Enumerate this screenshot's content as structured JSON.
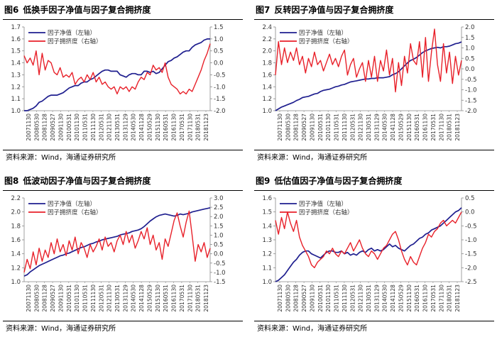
{
  "chart_data": [
    {
      "type": "line",
      "num": "图6",
      "title": "低换手因子净值与因子复合拥挤度",
      "source": "资料来源：Wind，海通证券研究所",
      "left_axis": {
        "ylim": [
          1.0,
          1.7
        ],
        "ticks": [
          "1.0",
          "1.1",
          "1.2",
          "1.3",
          "1.4",
          "1.5",
          "1.6",
          "1.7"
        ]
      },
      "right_axis": {
        "ylim": [
          -2.0,
          1.5
        ],
        "ticks": [
          "-2.0",
          "-1.5",
          "-1.0",
          "-0.5",
          "0.0",
          "0.5",
          "1.0",
          "1.5"
        ]
      },
      "x_tick_labels": [
        "20071130",
        "20080530",
        "20081128",
        "20090527",
        "20091130",
        "20100531",
        "20101130",
        "20110531",
        "20111130",
        "20120531",
        "20121130",
        "20130531",
        "20131129",
        "20140530",
        "20141128",
        "20150529",
        "20151130",
        "20160531",
        "20161130",
        "20170531",
        "20171130",
        "20180531",
        "20181123"
      ],
      "colors": {
        "nav": "#1f1f8f",
        "crowd": "#e8212a"
      },
      "series": [
        {
          "name": "因子净值（左轴）",
          "axis": "left",
          "color": "#1f1f8f",
          "values": [
            1.0,
            1.0,
            1.01,
            1.02,
            1.04,
            1.07,
            1.08,
            1.1,
            1.12,
            1.13,
            1.13,
            1.13,
            1.14,
            1.15,
            1.17,
            1.19,
            1.2,
            1.21,
            1.21,
            1.23,
            1.24,
            1.24,
            1.26,
            1.27,
            1.29,
            1.31,
            1.33,
            1.34,
            1.34,
            1.33,
            1.33,
            1.33,
            1.3,
            1.29,
            1.28,
            1.3,
            1.31,
            1.31,
            1.3,
            1.3,
            1.33,
            1.33,
            1.32,
            1.33,
            1.31,
            1.32,
            1.35,
            1.38,
            1.41,
            1.42,
            1.44,
            1.45,
            1.47,
            1.49,
            1.5,
            1.5,
            1.53,
            1.55,
            1.56,
            1.57,
            1.59,
            1.6,
            1.6
          ]
        },
        {
          "name": "因子拥挤度（右轴）",
          "axis": "right",
          "color": "#e8212a",
          "values": [
            0.3,
            0.0,
            0.2,
            -0.1,
            0.5,
            -0.5,
            0.4,
            -0.3,
            0.1,
            0.0,
            -0.4,
            -0.5,
            -0.2,
            -0.6,
            -0.5,
            -0.6,
            -0.4,
            -0.9,
            -0.7,
            -0.6,
            -0.8,
            -0.5,
            -0.7,
            -0.4,
            -0.8,
            -0.6,
            -0.9,
            -0.8,
            -1.0,
            -1.1,
            -1.0,
            -1.3,
            -1.0,
            -1.1,
            -1.0,
            -1.2,
            -1.0,
            -1.1,
            -0.8,
            -0.6,
            -0.7,
            -0.4,
            -0.5,
            -0.1,
            -0.3,
            -0.2,
            -0.4,
            0.0,
            -0.6,
            -0.9,
            -1.0,
            -1.1,
            -1.3,
            -1.2,
            -1.3,
            -1.1,
            -1.2,
            -0.9,
            -0.6,
            -0.3,
            0.1,
            0.4,
            0.8
          ]
        }
      ],
      "legend_position": "top-left"
    },
    {
      "type": "line",
      "num": "图7",
      "title": "反转因子净值与因子复合拥挤度",
      "source": "资料来源：Wind，海通证券研究所",
      "left_axis": {
        "ylim": [
          1.0,
          2.4
        ],
        "ticks": [
          "1.0",
          "1.2",
          "1.4",
          "1.6",
          "1.8",
          "2.0",
          "2.2",
          "2.4"
        ]
      },
      "right_axis": {
        "ylim": [
          -2.0,
          2.0
        ],
        "ticks": [
          "-2.0",
          "-1.5",
          "-1.0",
          "-0.5",
          "0.0",
          "0.5",
          "1.0",
          "1.5",
          "2.0"
        ]
      },
      "x_tick_labels": [
        "20071130",
        "20080530",
        "20081128",
        "20090527",
        "20091130",
        "20100531",
        "20101130",
        "20110531",
        "20111130",
        "20120531",
        "20121130",
        "20130531",
        "20131129",
        "20140530",
        "20141128",
        "20150529",
        "20151130",
        "20160531",
        "20161130",
        "20170531",
        "20171130",
        "20180531",
        "20181123"
      ],
      "colors": {
        "nav": "#1f1f8f",
        "crowd": "#e8212a"
      },
      "series": [
        {
          "name": "因子净值（左轴）",
          "axis": "left",
          "color": "#1f1f8f",
          "values": [
            1.0,
            1.03,
            1.06,
            1.08,
            1.1,
            1.12,
            1.14,
            1.17,
            1.19,
            1.22,
            1.23,
            1.24,
            1.26,
            1.28,
            1.29,
            1.32,
            1.34,
            1.35,
            1.36,
            1.38,
            1.4,
            1.41,
            1.43,
            1.44,
            1.46,
            1.48,
            1.49,
            1.5,
            1.51,
            1.52,
            1.53,
            1.53,
            1.54,
            1.54,
            1.55,
            1.55,
            1.55,
            1.56,
            1.57,
            1.6,
            1.62,
            1.65,
            1.7,
            1.75,
            1.8,
            1.84,
            1.86,
            1.89,
            1.93,
            1.97,
            2.0,
            2.02,
            2.04,
            2.05,
            2.06,
            2.05,
            2.07,
            2.07,
            2.08,
            2.1,
            2.12,
            2.13,
            2.15
          ]
        },
        {
          "name": "因子拥挤度（右轴）",
          "axis": "right",
          "color": "#e8212a",
          "values": [
            -0.3,
            1.3,
            0.2,
            1.0,
            0.3,
            0.8,
            0.4,
            1.0,
            0.2,
            0.6,
            -0.2,
            0.5,
            0.1,
            0.8,
            0.2,
            0.4,
            -0.1,
            0.3,
            0.7,
            0.2,
            0.5,
            0.1,
            0.6,
            0.9,
            -0.3,
            0.2,
            0.5,
            -0.4,
            0.0,
            0.3,
            -0.6,
            0.4,
            -0.4,
            0.6,
            -0.6,
            0.4,
            -0.1,
            0.9,
            -0.3,
            0.5,
            -1.1,
            0.3,
            -0.8,
            0.6,
            -0.2,
            1.2,
            0.4,
            0.2,
            1.3,
            -0.4,
            1.5,
            -0.6,
            0.8,
            1.9,
            0.2,
            -0.6,
            1.2,
            -0.2,
            0.8,
            -0.7,
            0.6,
            -0.3,
            0.4
          ]
        }
      ],
      "legend_position": "top-left"
    },
    {
      "type": "line",
      "num": "图8",
      "title": "低波动因子净值与因子复合拥挤度",
      "source": "资料来源：Wind，海通证券研究所",
      "left_axis": {
        "ylim": [
          1.0,
          2.2
        ],
        "ticks": [
          "1.0",
          "1.2",
          "1.4",
          "1.6",
          "1.8",
          "2.0",
          "2.2"
        ]
      },
      "right_axis": {
        "ylim": [
          -1.5,
          3.0
        ],
        "ticks": [
          "-1.5",
          "-1.0",
          "-0.5",
          "0.0",
          "0.5",
          "1.0",
          "1.5",
          "2.0",
          "2.5",
          "3.0"
        ]
      },
      "x_tick_labels": [
        "20071130",
        "20080530",
        "20081128",
        "20090527",
        "20091130",
        "20100531",
        "20101130",
        "20110531",
        "20111130",
        "20120531",
        "20121130",
        "20130531",
        "20131129",
        "20140530",
        "20141128",
        "20150529",
        "20151130",
        "20160531",
        "20161130",
        "20170531",
        "20171130",
        "20180531",
        "20181123"
      ],
      "colors": {
        "nav": "#1f1f8f",
        "crowd": "#e8212a"
      },
      "series": [
        {
          "name": "因子净值（左轴）",
          "axis": "left",
          "color": "#1f1f8f",
          "values": [
            1.08,
            1.1,
            1.14,
            1.17,
            1.2,
            1.23,
            1.25,
            1.27,
            1.29,
            1.31,
            1.33,
            1.35,
            1.37,
            1.38,
            1.4,
            1.41,
            1.43,
            1.45,
            1.47,
            1.49,
            1.5,
            1.52,
            1.54,
            1.55,
            1.57,
            1.58,
            1.6,
            1.61,
            1.62,
            1.63,
            1.64,
            1.65,
            1.67,
            1.68,
            1.69,
            1.7,
            1.72,
            1.73,
            1.74,
            1.76,
            1.79,
            1.83,
            1.87,
            1.9,
            1.93,
            1.95,
            1.96,
            1.97,
            1.96,
            1.95,
            1.94,
            1.95,
            1.97,
            1.96,
            1.97,
            1.98,
            2.0,
            2.01,
            2.02,
            2.03,
            2.04,
            2.05,
            2.06
          ]
        },
        {
          "name": "因子拥挤度（右轴）",
          "axis": "right",
          "color": "#e8212a",
          "values": [
            -1.0,
            -0.3,
            -0.8,
            0.1,
            -0.6,
            0.3,
            -0.4,
            0.2,
            -0.2,
            0.6,
            0.0,
            0.8,
            0.1,
            0.5,
            -0.1,
            0.7,
            0.2,
            0.9,
            0.0,
            0.6,
            0.3,
            -0.2,
            0.5,
            0.1,
            0.4,
            0.8,
            0.2,
            0.9,
            0.4,
            0.6,
            0.1,
            0.7,
            1.0,
            0.5,
            1.2,
            0.6,
            1.0,
            0.3,
            0.7,
            1.2,
            0.8,
            1.4,
            0.5,
            1.0,
            0.2,
            0.6,
            -0.3,
            0.8,
            0.4,
            1.1,
            1.8,
            2.2,
            1.5,
            0.9,
            1.7,
            2.3,
            1.0,
            -0.4,
            0.5,
            0.1,
            0.6,
            -0.2,
            0.3
          ]
        }
      ],
      "legend_position": "top-left"
    },
    {
      "type": "line",
      "num": "图9",
      "title": "低估值因子净值与因子复合拥挤度",
      "source": "资料来源：Wind，海通证券研究所",
      "left_axis": {
        "ylim": [
          1.0,
          1.6
        ],
        "ticks": [
          "1.0",
          "1.1",
          "1.2",
          "1.3",
          "1.4",
          "1.5",
          "1.6"
        ]
      },
      "right_axis": {
        "ylim": [
          -2.5,
          0.5
        ],
        "ticks": [
          "-2.5",
          "-2.0",
          "-1.5",
          "-1.0",
          "-0.5",
          "0.0",
          "0.5"
        ]
      },
      "x_tick_labels": [
        "20071130",
        "20080530",
        "20081128",
        "20090527",
        "20091130",
        "20100531",
        "20101130",
        "20110531",
        "20111130",
        "20120531",
        "20121130",
        "20130531",
        "20131129",
        "20140530",
        "20141128",
        "20150529",
        "20151130",
        "20160531",
        "20161130",
        "20170531",
        "20171130",
        "20180531",
        "20181123"
      ],
      "colors": {
        "nav": "#1f1f8f",
        "crowd": "#e8212a"
      },
      "series": [
        {
          "name": "因子净值（左轴）",
          "axis": "left",
          "color": "#1f1f8f",
          "values": [
            1.0,
            1.01,
            1.03,
            1.05,
            1.08,
            1.11,
            1.14,
            1.16,
            1.19,
            1.21,
            1.22,
            1.22,
            1.2,
            1.19,
            1.18,
            1.17,
            1.19,
            1.21,
            1.22,
            1.22,
            1.21,
            1.21,
            1.22,
            1.2,
            1.21,
            1.19,
            1.2,
            1.19,
            1.21,
            1.22,
            1.21,
            1.23,
            1.24,
            1.22,
            1.23,
            1.22,
            1.23,
            1.25,
            1.27,
            1.25,
            1.26,
            1.24,
            1.23,
            1.22,
            1.24,
            1.26,
            1.27,
            1.29,
            1.31,
            1.32,
            1.34,
            1.35,
            1.37,
            1.38,
            1.39,
            1.4,
            1.42,
            1.44,
            1.46,
            1.48,
            1.5,
            1.51,
            1.53
          ]
        },
        {
          "name": "因子拥挤度（右轴）",
          "axis": "right",
          "color": "#e8212a",
          "values": [
            -0.3,
            -0.8,
            -0.2,
            -0.6,
            0.0,
            -0.4,
            -0.7,
            -0.3,
            -0.9,
            -1.2,
            -1.4,
            -1.6,
            -1.9,
            -2.0,
            -1.8,
            -1.7,
            -1.6,
            -1.4,
            -1.5,
            -1.3,
            -1.5,
            -1.6,
            -1.4,
            -1.5,
            -1.3,
            -1.1,
            -1.4,
            -1.2,
            -1.0,
            -1.3,
            -1.5,
            -1.6,
            -1.4,
            -1.5,
            -1.7,
            -1.5,
            -1.3,
            -1.2,
            -1.0,
            -0.8,
            -0.7,
            -1.0,
            -1.4,
            -1.7,
            -1.9,
            -1.6,
            -1.8,
            -1.9,
            -1.6,
            -1.3,
            -1.1,
            -0.8,
            -0.9,
            -0.7,
            -0.6,
            -0.4,
            -0.3,
            -0.5,
            -0.4,
            -0.3,
            -0.4,
            -0.2,
            0.0
          ]
        }
      ],
      "legend_position": "top-left"
    }
  ]
}
